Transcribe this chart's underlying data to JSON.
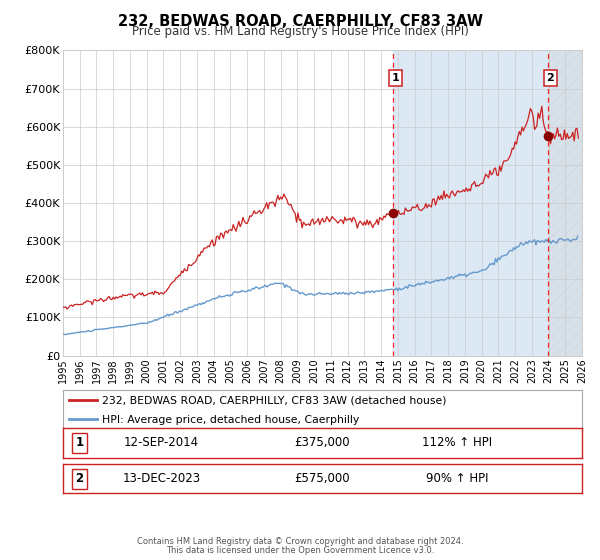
{
  "title": "232, BEDWAS ROAD, CAERPHILLY, CF83 3AW",
  "subtitle": "Price paid vs. HM Land Registry's House Price Index (HPI)",
  "legend_line1": "232, BEDWAS ROAD, CAERPHILLY, CF83 3AW (detached house)",
  "legend_line2": "HPI: Average price, detached house, Caerphilly",
  "annotation1_label": "1",
  "annotation1_date": "12-SEP-2014",
  "annotation1_price": "£375,000",
  "annotation1_hpi": "112% ↑ HPI",
  "annotation1_year": 2014.7,
  "annotation1_value": 375000,
  "annotation2_label": "2",
  "annotation2_date": "13-DEC-2023",
  "annotation2_price": "£575,000",
  "annotation2_hpi": "90% ↑ HPI",
  "annotation2_year": 2023.95,
  "annotation2_value": 575000,
  "xmin": 1995,
  "xmax": 2026,
  "ymin": 0,
  "ymax": 800000,
  "yticks": [
    0,
    100000,
    200000,
    300000,
    400000,
    500000,
    600000,
    700000,
    800000
  ],
  "hpi_color": "#6699cc",
  "house_color": "#cc2222",
  "marker_color": "#8b0000",
  "grid_color": "#cccccc",
  "background_color": "#ffffff",
  "highlight_color": "#dce9f5",
  "hatch_color": "#cccccc",
  "footnote1": "Contains HM Land Registry data © Crown copyright and database right 2024.",
  "footnote2": "This data is licensed under the Open Government Licence v3.0."
}
